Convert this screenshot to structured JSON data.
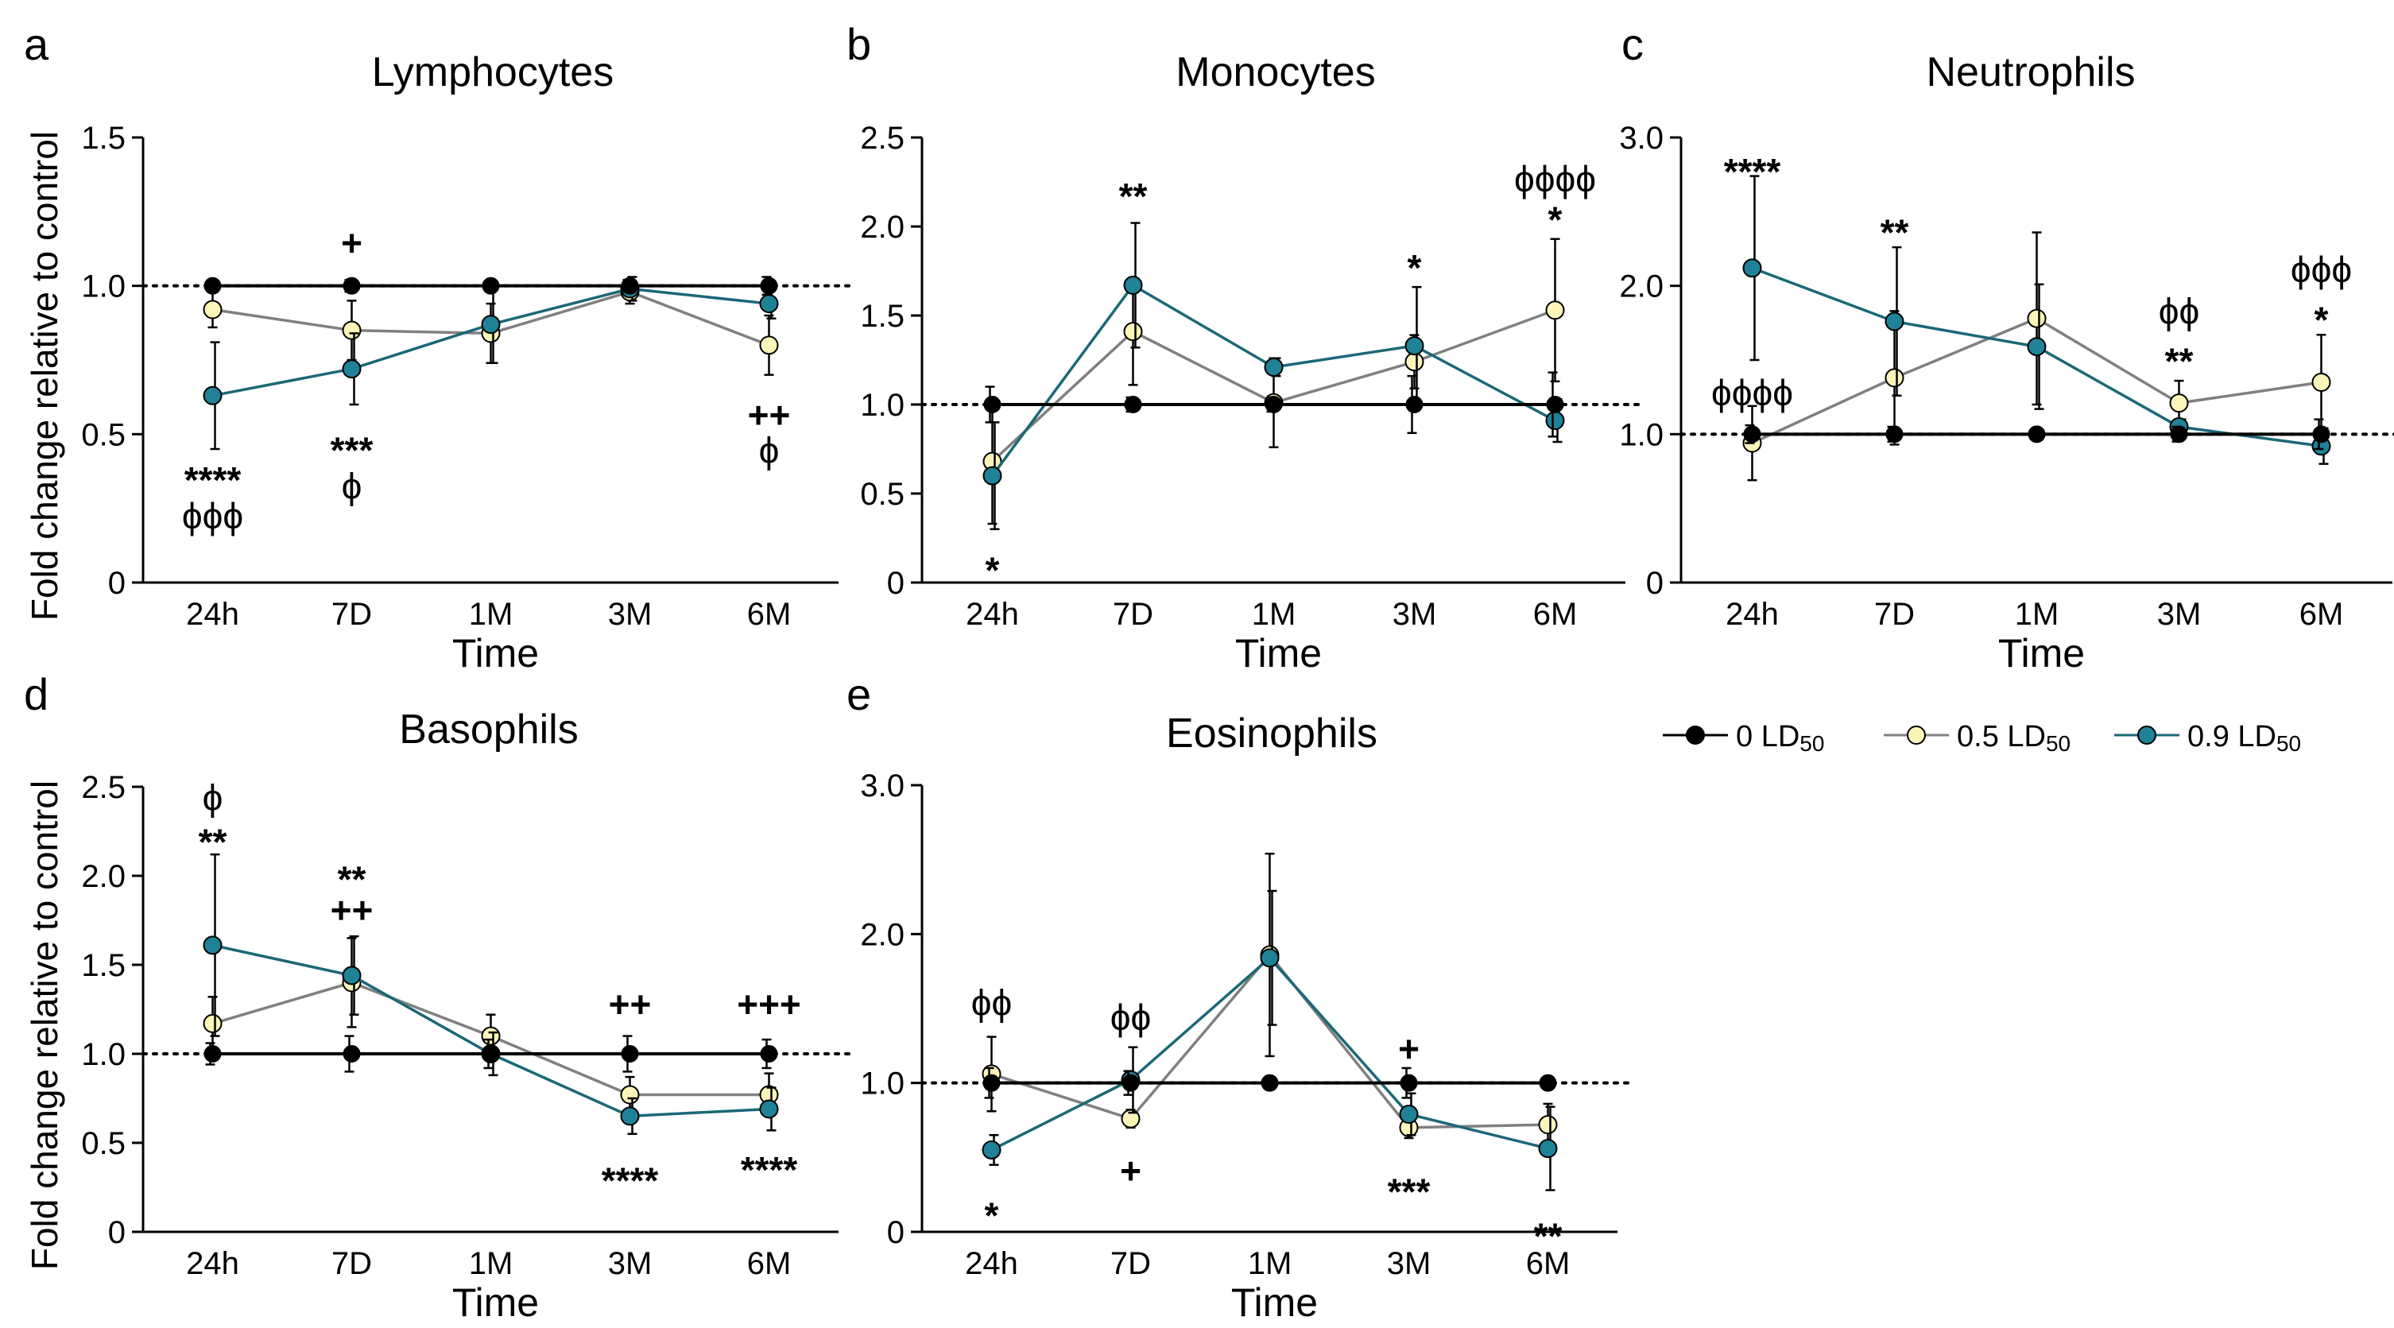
{
  "figure": {
    "legend": {
      "entries": [
        {
          "series": "s0",
          "base": "0 LD",
          "sub": "50"
        },
        {
          "series": "s1",
          "base": "0.5 LD",
          "sub": "50"
        },
        {
          "series": "s2",
          "base": "0.9 LD",
          "sub": "50"
        }
      ]
    }
  },
  "colors": {
    "s0_fill": "#000000",
    "s0_line": "#000000",
    "s1_fill": "#fbf5b9",
    "s1_line": "#808080",
    "s2_fill": "#1f8296",
    "s2_line": "#1b6878",
    "axis": "#000000",
    "reference": "#000000"
  },
  "chart_data": [
    {
      "panel": "a",
      "type": "line",
      "title": "Lymphocytes",
      "xlabel": "Time",
      "ylabel": "Fold change relative to control",
      "categories": [
        "24h",
        "7D",
        "1M",
        "3M",
        "6M"
      ],
      "ylim": [
        0,
        1.5
      ],
      "yticks": [
        "0",
        "0.5",
        "1.0",
        "1.5"
      ],
      "reference_line": 1.0,
      "series": [
        {
          "name": "0 LD50",
          "values": [
            1.0,
            1.0,
            1.0,
            1.0,
            1.0
          ],
          "errors": [
            0.01,
            0.02,
            0.01,
            0.02,
            0.03
          ]
        },
        {
          "name": "0.5 LD50",
          "values": [
            0.92,
            0.85,
            0.84,
            0.98,
            0.8
          ],
          "errors": [
            0.06,
            0.1,
            0.1,
            0.04,
            0.1
          ]
        },
        {
          "name": "0.9 LD50",
          "values": [
            0.63,
            0.72,
            0.87,
            0.99,
            0.94
          ],
          "errors": [
            0.18,
            0.12,
            0.13,
            0.04,
            0.05
          ]
        }
      ],
      "annotations": [
        {
          "x": 0,
          "y": 0.34,
          "text": "****"
        },
        {
          "x": 0,
          "y": 0.22,
          "text": "ϕϕϕ"
        },
        {
          "x": 1,
          "y": 1.14,
          "text": "+"
        },
        {
          "x": 1,
          "y": 0.44,
          "text": "***"
        },
        {
          "x": 1,
          "y": 0.32,
          "text": "ϕ"
        },
        {
          "x": 4,
          "y": 0.56,
          "text": "++"
        },
        {
          "x": 4,
          "y": 0.44,
          "text": "ϕ"
        }
      ]
    },
    {
      "panel": "b",
      "type": "line",
      "title": "Monocytes",
      "xlabel": "Time",
      "ylabel": "",
      "categories": [
        "24h",
        "7D",
        "1M",
        "3M",
        "6M"
      ],
      "ylim": [
        0,
        2.5
      ],
      "yticks": [
        "0",
        "0.5",
        "1.0",
        "1.5",
        "2.0",
        "2.5"
      ],
      "reference_line": 1.0,
      "series": [
        {
          "name": "0 LD50",
          "values": [
            1.0,
            1.0,
            1.0,
            1.0,
            1.0
          ],
          "errors": [
            0.1,
            0.04,
            0.04,
            0.16,
            0.18
          ]
        },
        {
          "name": "0.5 LD50",
          "values": [
            0.68,
            1.41,
            1.01,
            1.24,
            1.53
          ],
          "errors": [
            0.35,
            0.3,
            0.25,
            0.15,
            0.4
          ]
        },
        {
          "name": "0.9 LD50",
          "values": [
            0.6,
            1.67,
            1.21,
            1.33,
            0.91
          ],
          "errors": [
            0.3,
            0.35,
            0.05,
            0.33,
            0.12
          ]
        }
      ],
      "annotations": [
        {
          "x": 0,
          "y": 0.06,
          "text": "*"
        },
        {
          "x": 1,
          "y": 2.16,
          "text": "**"
        },
        {
          "x": 3,
          "y": 1.76,
          "text": "*"
        },
        {
          "x": 4,
          "y": 2.26,
          "text": "ϕϕϕϕ"
        },
        {
          "x": 4,
          "y": 2.03,
          "text": "*"
        }
      ]
    },
    {
      "panel": "c",
      "type": "line",
      "title": "Neutrophils",
      "xlabel": "Time",
      "ylabel": "",
      "categories": [
        "24h",
        "7D",
        "1M",
        "3M",
        "6M"
      ],
      "ylim": [
        0,
        3.0
      ],
      "yticks": [
        "0",
        "1.0",
        "2.0",
        "3.0"
      ],
      "reference_line": 1.0,
      "series": [
        {
          "name": "0 LD50",
          "values": [
            1.0,
            1.0,
            1.0,
            1.0,
            1.0
          ],
          "errors": [
            0.06,
            0.05,
            0.02,
            0.05,
            0.1
          ]
        },
        {
          "name": "0.5 LD50",
          "values": [
            0.94,
            1.38,
            1.78,
            1.21,
            1.35
          ],
          "errors": [
            0.25,
            0.45,
            0.58,
            0.15,
            0.32
          ]
        },
        {
          "name": "0.9 LD50",
          "values": [
            2.12,
            1.76,
            1.59,
            1.05,
            0.92
          ],
          "errors": [
            0.62,
            0.5,
            0.42,
            0.05,
            0.12
          ]
        }
      ],
      "annotations": [
        {
          "x": 0,
          "y": 2.76,
          "text": "****"
        },
        {
          "x": 0,
          "y": 1.27,
          "text": "ϕϕϕϕ"
        },
        {
          "x": 1,
          "y": 2.35,
          "text": "**"
        },
        {
          "x": 3,
          "y": 1.82,
          "text": "ϕϕ"
        },
        {
          "x": 3,
          "y": 1.48,
          "text": "**"
        },
        {
          "x": 4,
          "y": 2.1,
          "text": "ϕϕϕ"
        },
        {
          "x": 4,
          "y": 1.76,
          "text": "*"
        }
      ]
    },
    {
      "panel": "d",
      "type": "line",
      "title": "Basophils",
      "xlabel": "Time",
      "ylabel": "Fold change relative to control",
      "categories": [
        "24h",
        "7D",
        "1M",
        "3M",
        "6M"
      ],
      "ylim": [
        0,
        2.5
      ],
      "yticks": [
        "0",
        "0.5",
        "1.0",
        "1.5",
        "2.0",
        "2.5"
      ],
      "reference_line": 1.0,
      "series": [
        {
          "name": "0 LD50",
          "values": [
            1.0,
            1.0,
            1.0,
            1.0,
            1.0
          ],
          "errors": [
            0.06,
            0.1,
            0.08,
            0.1,
            0.08
          ]
        },
        {
          "name": "0.5 LD50",
          "values": [
            1.17,
            1.4,
            1.1,
            0.77,
            0.77
          ],
          "errors": [
            0.15,
            0.25,
            0.12,
            0.1,
            0.12
          ]
        },
        {
          "name": "0.9 LD50",
          "values": [
            1.61,
            1.44,
            1.0,
            0.65,
            0.69
          ],
          "errors": [
            0.51,
            0.22,
            0.12,
            0.1,
            0.12
          ]
        }
      ],
      "annotations": [
        {
          "x": 0,
          "y": 2.43,
          "text": "ϕ"
        },
        {
          "x": 0,
          "y": 2.18,
          "text": "**"
        },
        {
          "x": 1,
          "y": 1.97,
          "text": "**"
        },
        {
          "x": 1,
          "y": 1.8,
          "text": "++"
        },
        {
          "x": 3,
          "y": 1.27,
          "text": "++"
        },
        {
          "x": 3,
          "y": 0.28,
          "text": "****"
        },
        {
          "x": 4,
          "y": 1.27,
          "text": "+++"
        },
        {
          "x": 4,
          "y": 0.34,
          "text": "****"
        }
      ]
    },
    {
      "panel": "e",
      "type": "line",
      "title": "Eosinophils",
      "xlabel": "Time",
      "ylabel": "",
      "categories": [
        "24h",
        "7D",
        "1M",
        "3M",
        "6M"
      ],
      "ylim": [
        0,
        3.0
      ],
      "yticks": [
        "0",
        "1.0",
        "2.0",
        "3.0"
      ],
      "reference_line": 1.0,
      "series": [
        {
          "name": "0 LD50",
          "values": [
            1.0,
            1.0,
            1.0,
            1.0,
            1.0
          ],
          "errors": [
            0.1,
            0.08,
            0.02,
            0.1,
            0.03
          ]
        },
        {
          "name": "0.5 LD50",
          "values": [
            1.06,
            0.76,
            1.86,
            0.7,
            0.72
          ],
          "errors": [
            0.25,
            0.06,
            0.68,
            0.07,
            0.14
          ]
        },
        {
          "name": "0.9 LD50",
          "values": [
            0.55,
            1.02,
            1.84,
            0.79,
            0.56
          ],
          "errors": [
            0.1,
            0.22,
            0.45,
            0.14,
            0.28
          ]
        }
      ],
      "annotations": [
        {
          "x": 0,
          "y": 1.53,
          "text": "ϕϕ"
        },
        {
          "x": 0,
          "y": 0.1,
          "text": "*"
        },
        {
          "x": 1,
          "y": 1.43,
          "text": "ϕϕ"
        },
        {
          "x": 1,
          "y": 0.4,
          "text": "+"
        },
        {
          "x": 3,
          "y": 1.22,
          "text": "+"
        },
        {
          "x": 3,
          "y": 0.26,
          "text": "***"
        },
        {
          "x": 4,
          "y": -0.04,
          "text": "**"
        }
      ]
    }
  ]
}
